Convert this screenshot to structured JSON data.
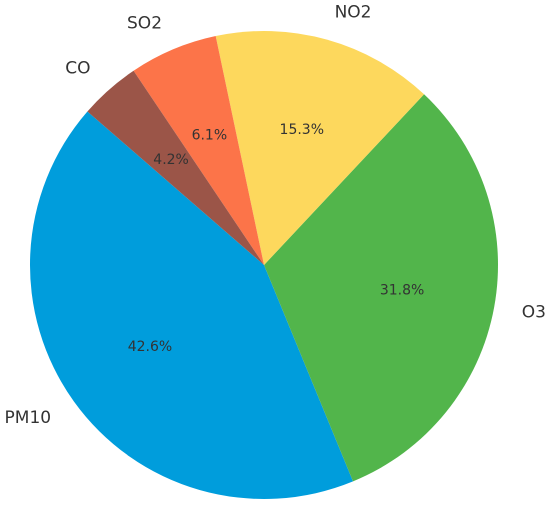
{
  "chart_data": {
    "type": "pie",
    "categories": [
      "PM10",
      "O3",
      "NO2",
      "SO2",
      "CO"
    ],
    "values": [
      42.6,
      31.8,
      15.3,
      6.1,
      4.2
    ],
    "value_labels": [
      "42.6%",
      "31.8%",
      "15.3%",
      "6.1%",
      "4.2%"
    ],
    "colors": [
      "#009ddc",
      "#52b54b",
      "#fdd85d",
      "#fc7449",
      "#9b5548"
    ],
    "start_angle_deg": 139,
    "direction": "counterclockwise",
    "title": "",
    "legend": "none"
  }
}
